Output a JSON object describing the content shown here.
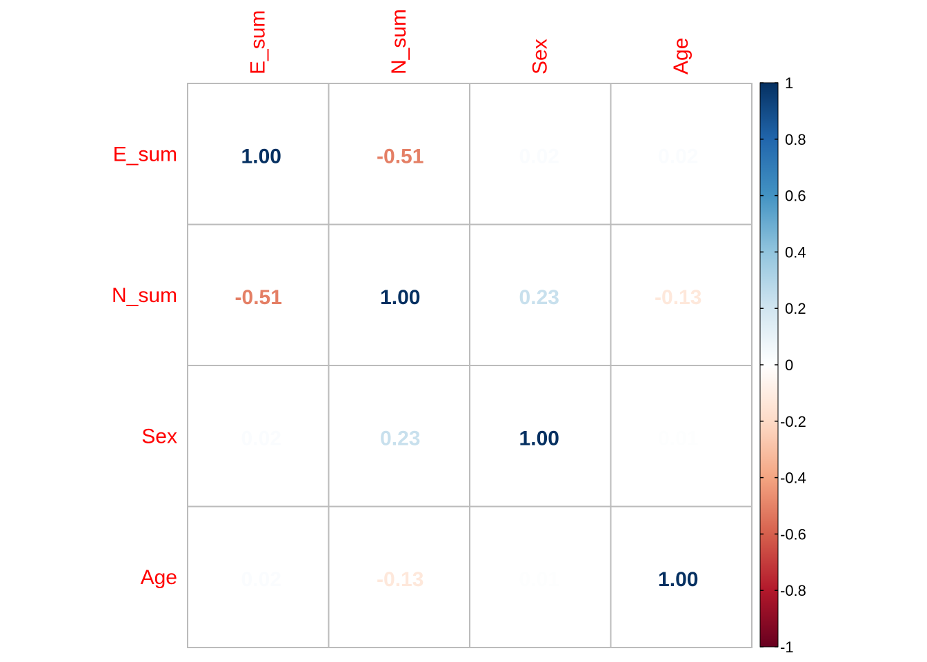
{
  "chart_data": {
    "type": "heatmap",
    "variables": [
      "E_sum",
      "N_sum",
      "Sex",
      "Age"
    ],
    "matrix": [
      [
        "1.00",
        "-0.51",
        "0.02",
        "0.02"
      ],
      [
        "-0.51",
        "1.00",
        "0.23",
        "-0.13"
      ],
      [
        "0.02",
        "0.23",
        "1.00",
        "0.01"
      ],
      [
        "0.02",
        "-0.13",
        "0.01",
        "1.00"
      ]
    ],
    "colorbar": {
      "range": [
        -1,
        1
      ],
      "ticks": [
        "1",
        "0.8",
        "0.6",
        "0.4",
        "0.2",
        "0",
        "-0.2",
        "-0.4",
        "-0.6",
        "-0.8",
        "-1"
      ],
      "colors": [
        "#67001F",
        "#B2182B",
        "#D6604D",
        "#F4A582",
        "#FDDBC7",
        "#FFFFFF",
        "#D1E5F0",
        "#92C5DE",
        "#4393C3",
        "#2166AC",
        "#053061"
      ]
    },
    "label_color": "#ff0000",
    "grid_color": "#bbbbbb"
  }
}
